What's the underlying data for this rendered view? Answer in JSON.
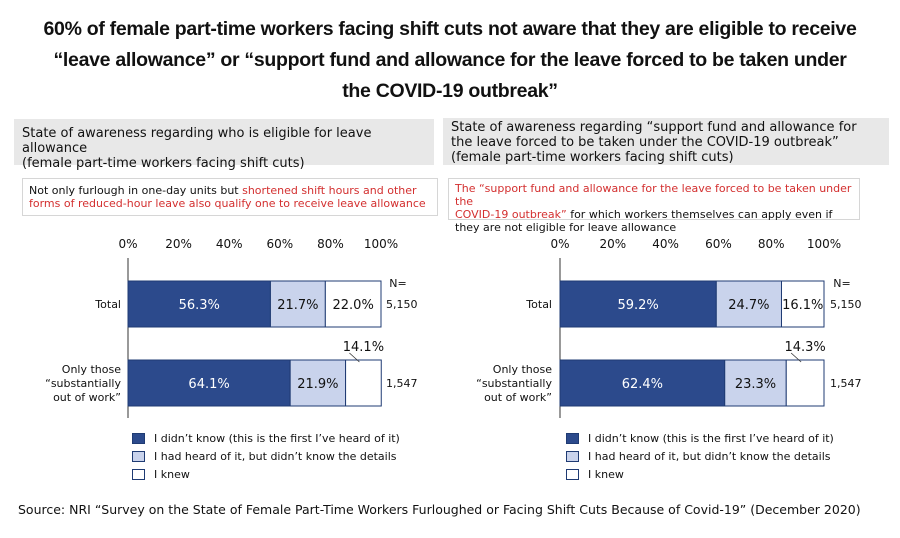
{
  "title": {
    "line1": "60% of female part-time workers facing shift cuts not aware that they are eligible to receive",
    "line2": "“leave allowance” or “support fund and allowance for the leave forced to be taken under",
    "line3": "the COVID-19 outbreak”"
  },
  "panels": [
    {
      "heading": [
        "State of awareness regarding who is eligible for leave allowance",
        "(female part-time workers facing shift cuts)"
      ],
      "note": {
        "line1_black": "Not only furlough in one-day units but ",
        "line1_red": "shortened shift hours and other",
        "line2_red": "forms of reduced-hour leave also qualify one to receive leave allowance",
        "line3_black": ""
      }
    },
    {
      "heading": [
        "State of awareness regarding “support fund and allowance for",
        "the leave forced to be taken under the COVID-19 outbreak”",
        "(female part-time workers facing shift cuts)"
      ],
      "note": {
        "line1_red": "The “support fund and allowance for the leave forced to be taken under the",
        "line2_red": "COVID-19 outbreak”",
        "line2_black": " for which workers themselves can apply even if",
        "line3_black": "they are not eligible for leave allowance"
      }
    }
  ],
  "chart_data": [
    {
      "type": "bar",
      "orientation": "horizontal-stacked",
      "x_ticks": [
        "0%",
        "20%",
        "40%",
        "60%",
        "80%",
        "100%"
      ],
      "xlim": [
        0,
        100
      ],
      "n_header": "N=",
      "categories": [
        {
          "label": [
            "Total"
          ],
          "n": "5,150"
        },
        {
          "label": [
            "Only those",
            "“substantially",
            "out of work”"
          ],
          "n": "1,547"
        }
      ],
      "series": [
        {
          "name": "I didn’t know (this is the first I’ve heard of it)",
          "color": "#2c4a8c",
          "values": [
            56.3,
            64.1
          ],
          "labels": [
            "56.3%",
            "64.1%"
          ]
        },
        {
          "name": "I had heard of it, but didn’t know the details",
          "color": "#c9d3ec",
          "values": [
            21.7,
            21.9
          ],
          "labels": [
            "21.7%",
            "21.9%"
          ]
        },
        {
          "name": "I knew",
          "color": "#ffffff",
          "values": [
            22.0,
            14.1
          ],
          "labels": [
            "22.0%",
            "14.1%"
          ]
        }
      ]
    },
    {
      "type": "bar",
      "orientation": "horizontal-stacked",
      "x_ticks": [
        "0%",
        "20%",
        "40%",
        "60%",
        "80%",
        "100%"
      ],
      "xlim": [
        0,
        100
      ],
      "n_header": "N=",
      "categories": [
        {
          "label": [
            "Total"
          ],
          "n": "5,150"
        },
        {
          "label": [
            "Only those",
            "“substantially",
            "out of work”"
          ],
          "n": "1,547"
        }
      ],
      "series": [
        {
          "name": "I didn’t know (this is the first I’ve heard of it)",
          "color": "#2c4a8c",
          "values": [
            59.2,
            62.4
          ],
          "labels": [
            "59.2%",
            "62.4%"
          ]
        },
        {
          "name": "I had heard of it, but didn’t know the details",
          "color": "#c9d3ec",
          "values": [
            24.7,
            23.3
          ],
          "labels": [
            "24.7%",
            "23.3%"
          ]
        },
        {
          "name": "I knew",
          "color": "#ffffff",
          "values": [
            16.1,
            14.3
          ],
          "labels": [
            "16.1%",
            "14.3%"
          ]
        }
      ]
    }
  ],
  "legend": [
    {
      "label": "I didn’t know (this is the first I’ve heard of it)",
      "color": "#2c4a8c"
    },
    {
      "label": "I had heard of it, but didn’t know the details",
      "color": "#c9d3ec"
    },
    {
      "label": "I knew",
      "color": "#ffffff"
    }
  ],
  "source": "Source: NRI “Survey on the State of Female Part-Time Workers Furloughed or Facing Shift Cuts Because of Covid-19” (December 2020)"
}
